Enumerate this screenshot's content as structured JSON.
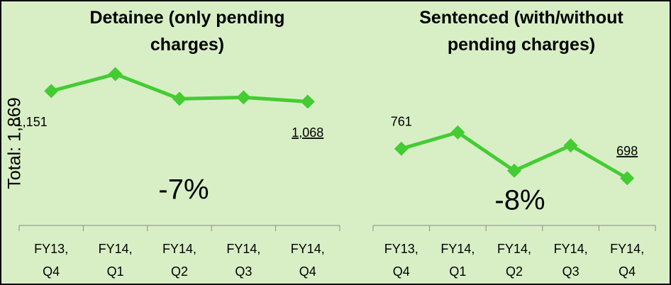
{
  "chart_data": [
    {
      "type": "line",
      "title": "Detainee (only pending charges)",
      "total_label": "Total: 1,869",
      "change_label": "-7%",
      "categories": [
        "FY13, Q4",
        "FY14, Q1",
        "FY14, Q2",
        "FY14, Q3",
        "FY14, Q4"
      ],
      "values": [
        1151,
        1284,
        1090,
        1101,
        1068
      ],
      "value_labels": [
        "1,151",
        null,
        null,
        null,
        "1,068"
      ],
      "color": "#44cc33",
      "ylim": [
        95,
        1521
      ]
    },
    {
      "type": "line",
      "title": "Sentenced (with/without pending charges)",
      "change_label": "-8%",
      "categories": [
        "FY13, Q4",
        "FY14, Q1",
        "FY14, Q2",
        "FY14, Q3",
        "FY14, Q4"
      ],
      "values": [
        761,
        796,
        714,
        768,
        698
      ],
      "value_labels": [
        "761",
        null,
        null,
        null,
        "698"
      ],
      "color": "#44cc33",
      "ylim": [
        597,
        985
      ]
    }
  ]
}
